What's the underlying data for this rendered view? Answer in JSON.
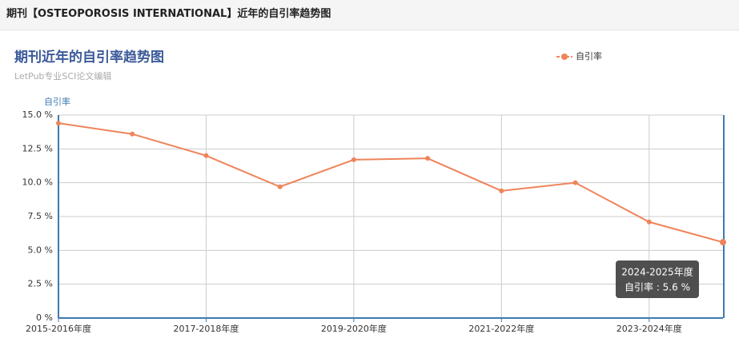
{
  "header": {
    "title": "期刊【OSTEOPOROSIS INTERNATIONAL】近年的自引率趋势图"
  },
  "chart_data": {
    "type": "line",
    "title": "期刊近年的自引率趋势图",
    "subtitle": "LetPub专业SCI论文编辑",
    "y_label": "自引率",
    "categories": [
      "2015-2016年度",
      null,
      "2017-2018年度",
      null,
      "2019-2020年度",
      null,
      "2021-2022年度",
      null,
      "2023-2024年度",
      null
    ],
    "series": [
      {
        "name": "自引率",
        "color": "#ef845a",
        "values": [
          14.4,
          13.6,
          12.0,
          9.7,
          11.7,
          11.8,
          9.4,
          10.0,
          7.1,
          5.6
        ]
      }
    ],
    "ylim": [
      0,
      15
    ],
    "yticks": [
      {
        "value": 0,
        "label": "0 %"
      },
      {
        "value": 2.5,
        "label": "2.5 %"
      },
      {
        "value": 5,
        "label": "5.0 %"
      },
      {
        "value": 7.5,
        "label": "7.5 %"
      },
      {
        "value": 10,
        "label": "10.0 %"
      },
      {
        "value": 12.5,
        "label": "12.5 %"
      },
      {
        "value": 15,
        "label": "15.0 %"
      }
    ],
    "grid": true,
    "legend": "top-right",
    "tooltip": {
      "title": "2024-2025年度",
      "text": "自引率 : 5.6 %"
    }
  }
}
